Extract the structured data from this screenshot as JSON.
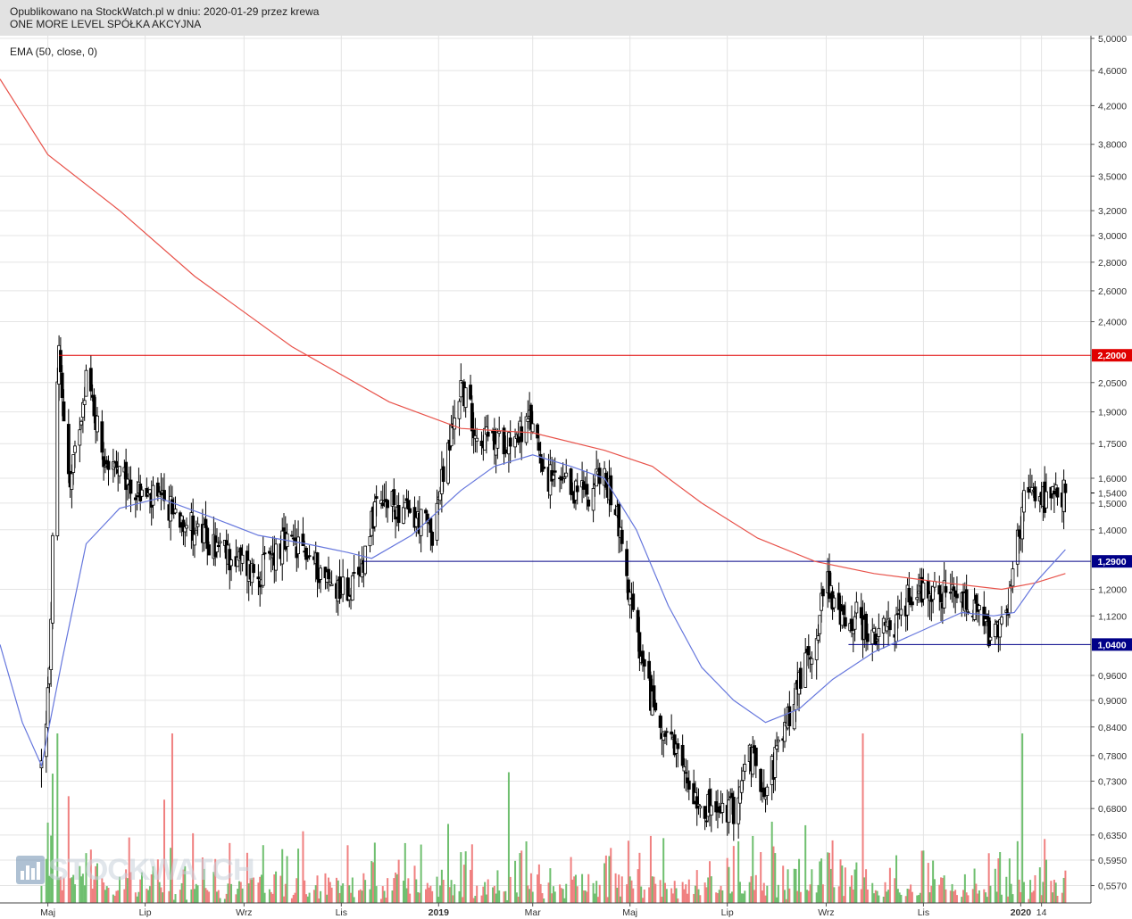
{
  "header": {
    "line1": "Opublikowano na StockWatch.pl w dniu: 2020-01-29 przez krewa",
    "line2": "ONE MORE LEVEL SPÓŁKA AKCYJNA"
  },
  "indicator_label": "EMA (50, close, 0)",
  "logo_text": "STOCKWATCH",
  "colors": {
    "up_volume": "#6fbf6f",
    "down_volume": "#f08080",
    "ema_short": "#6677dd",
    "ema_long": "#e8524a",
    "resistance": "#e00000",
    "support": "#000088",
    "price_badge": "#ffffff"
  },
  "chart_data": {
    "type": "candlestick",
    "y_scale": "log",
    "ylim": [
      0.55,
      5.0
    ],
    "y_ticks": [
      "5,0000",
      "4,6000",
      "4,2000",
      "3,8000",
      "3,5000",
      "3,2000",
      "3,0000",
      "2,8000",
      "2,6000",
      "2,4000",
      "2,0500",
      "1,9000",
      "1,7500",
      "1,6000",
      "1,5000",
      "1,4000",
      "1,2000",
      "1,1200",
      "0,9600",
      "0,9000",
      "0,8400",
      "0,7800",
      "0,7300",
      "0,6800",
      "0,6350",
      "0,5950",
      "0,5570"
    ],
    "x_ticks": [
      "Maj",
      "Lip",
      "Wrz",
      "Lis",
      "2019",
      "Mar",
      "Maj",
      "Lip",
      "Wrz",
      "Lis",
      "2020",
      "14"
    ],
    "x_range": [
      "2018-04-01",
      "2020-02-14"
    ],
    "horizontal_levels": [
      {
        "value": 2.2,
        "label": "2,2000",
        "color": "#e00000"
      },
      {
        "value": 1.29,
        "label": "1,2900",
        "color": "#000088"
      },
      {
        "value": 1.04,
        "label": "1,0400",
        "color": "#000088"
      }
    ],
    "last_price": {
      "value": 1.54,
      "label": "1,5400"
    },
    "price_path": [
      [
        "2018-04-27",
        0.76
      ],
      [
        "2018-05-02",
        0.95
      ],
      [
        "2018-05-05",
        1.6
      ],
      [
        "2018-05-08",
        2.2
      ],
      [
        "2018-05-15",
        1.55
      ],
      [
        "2018-05-25",
        2.1
      ],
      [
        "2018-06-05",
        1.7
      ],
      [
        "2018-06-15",
        1.6
      ],
      [
        "2018-06-25",
        1.55
      ],
      [
        "2018-07-10",
        1.5
      ],
      [
        "2018-07-25",
        1.45
      ],
      [
        "2018-08-10",
        1.35
      ],
      [
        "2018-08-25",
        1.3
      ],
      [
        "2018-09-10",
        1.25
      ],
      [
        "2018-09-25",
        1.35
      ],
      [
        "2018-10-10",
        1.32
      ],
      [
        "2018-10-25",
        1.22
      ],
      [
        "2018-11-05",
        1.2
      ],
      [
        "2018-11-12",
        1.22
      ],
      [
        "2018-11-20",
        1.45
      ],
      [
        "2018-12-01",
        1.5
      ],
      [
        "2018-12-15",
        1.45
      ],
      [
        "2018-12-28",
        1.4
      ],
      [
        "2019-01-08",
        1.75
      ],
      [
        "2019-01-15",
        2.05
      ],
      [
        "2019-01-25",
        1.8
      ],
      [
        "2019-02-05",
        1.75
      ],
      [
        "2019-02-20",
        1.8
      ],
      [
        "2019-03-01",
        1.85
      ],
      [
        "2019-03-10",
        1.6
      ],
      [
        "2019-03-25",
        1.55
      ],
      [
        "2019-04-05",
        1.55
      ],
      [
        "2019-04-12",
        1.62
      ],
      [
        "2019-04-22",
        1.5
      ],
      [
        "2019-04-30",
        1.2
      ],
      [
        "2019-05-10",
        0.95
      ],
      [
        "2019-05-20",
        0.85
      ],
      [
        "2019-06-01",
        0.76
      ],
      [
        "2019-06-15",
        0.69
      ],
      [
        "2019-06-25",
        0.67
      ],
      [
        "2019-07-05",
        0.68
      ],
      [
        "2019-07-15",
        0.78
      ],
      [
        "2019-07-25",
        0.72
      ],
      [
        "2019-08-05",
        0.82
      ],
      [
        "2019-08-15",
        0.95
      ],
      [
        "2019-08-25",
        1.05
      ],
      [
        "2019-09-01",
        1.25
      ],
      [
        "2019-09-10",
        1.1
      ],
      [
        "2019-09-20",
        1.12
      ],
      [
        "2019-10-01",
        1.05
      ],
      [
        "2019-10-15",
        1.1
      ],
      [
        "2019-10-25",
        1.2
      ],
      [
        "2019-11-05",
        1.2
      ],
      [
        "2019-11-15",
        1.18
      ],
      [
        "2019-11-25",
        1.16
      ],
      [
        "2019-12-05",
        1.12
      ],
      [
        "2019-12-15",
        1.05
      ],
      [
        "2019-12-22",
        1.1
      ],
      [
        "2019-12-28",
        1.28
      ],
      [
        "2020-01-03",
        1.5
      ],
      [
        "2020-01-10",
        1.55
      ],
      [
        "2020-01-17",
        1.5
      ],
      [
        "2020-01-24",
        1.52
      ],
      [
        "2020-01-29",
        1.54
      ]
    ],
    "ema_short_path": [
      [
        "2018-04-01",
        1.04
      ],
      [
        "2018-04-15",
        0.85
      ],
      [
        "2018-04-27",
        0.76
      ],
      [
        "2018-05-10",
        1.0
      ],
      [
        "2018-05-25",
        1.35
      ],
      [
        "2018-06-15",
        1.48
      ],
      [
        "2018-07-10",
        1.52
      ],
      [
        "2018-08-10",
        1.45
      ],
      [
        "2018-09-10",
        1.38
      ],
      [
        "2018-10-10",
        1.35
      ],
      [
        "2018-11-05",
        1.32
      ],
      [
        "2018-11-20",
        1.3
      ],
      [
        "2018-12-15",
        1.38
      ],
      [
        "2019-01-15",
        1.55
      ],
      [
        "2019-02-05",
        1.65
      ],
      [
        "2019-03-01",
        1.7
      ],
      [
        "2019-03-25",
        1.65
      ],
      [
        "2019-04-15",
        1.6
      ],
      [
        "2019-05-05",
        1.4
      ],
      [
        "2019-05-25",
        1.15
      ],
      [
        "2019-06-15",
        0.98
      ],
      [
        "2019-07-05",
        0.9
      ],
      [
        "2019-07-25",
        0.85
      ],
      [
        "2019-08-15",
        0.88
      ],
      [
        "2019-09-05",
        0.95
      ],
      [
        "2019-10-01",
        1.02
      ],
      [
        "2019-11-01",
        1.08
      ],
      [
        "2019-11-25",
        1.13
      ],
      [
        "2019-12-15",
        1.12
      ],
      [
        "2019-12-28",
        1.13
      ],
      [
        "2020-01-10",
        1.22
      ],
      [
        "2020-01-29",
        1.33
      ]
    ],
    "ema_long_path": [
      [
        "2018-04-01",
        4.5
      ],
      [
        "2018-05-01",
        3.7
      ],
      [
        "2018-06-15",
        3.2
      ],
      [
        "2018-08-01",
        2.7
      ],
      [
        "2018-10-01",
        2.25
      ],
      [
        "2018-12-01",
        1.95
      ],
      [
        "2019-01-15",
        1.82
      ],
      [
        "2019-03-01",
        1.8
      ],
      [
        "2019-04-15",
        1.72
      ],
      [
        "2019-05-15",
        1.65
      ],
      [
        "2019-06-15",
        1.5
      ],
      [
        "2019-07-20",
        1.37
      ],
      [
        "2019-08-25",
        1.29
      ],
      [
        "2019-10-01",
        1.25
      ],
      [
        "2019-11-15",
        1.22
      ],
      [
        "2019-12-20",
        1.2
      ],
      [
        "2020-01-10",
        1.22
      ],
      [
        "2020-01-29",
        1.25
      ]
    ]
  }
}
